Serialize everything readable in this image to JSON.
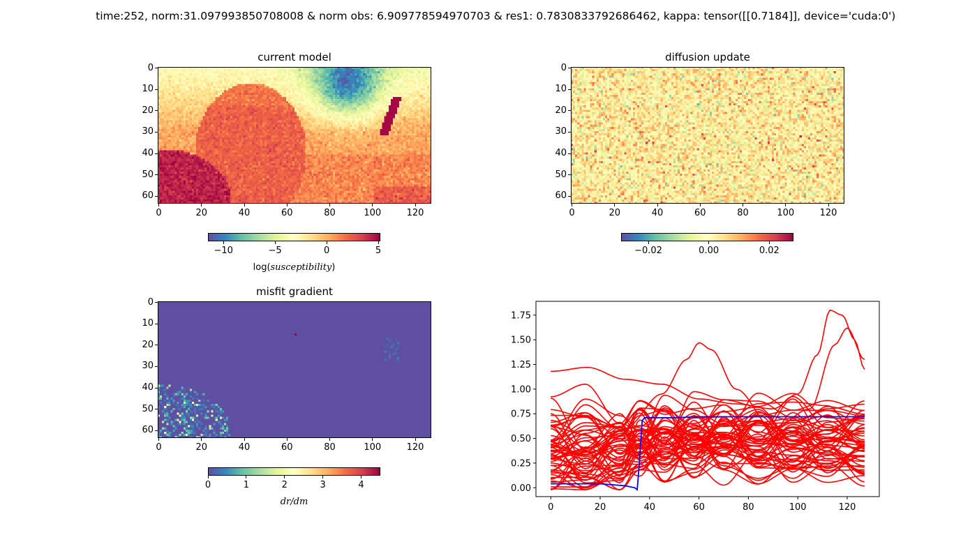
{
  "window_title": "  time:252, norm:31.097993850708008 & norm obs: 6.909778594970703 & res1: 0.7830833792686462, kappa: tensor([[0.7184]], device='cuda:0')",
  "colormap": "Spectral_r",
  "chart_data": [
    {
      "type": "heatmap",
      "title": "current model",
      "grid_shape": [
        64,
        128
      ],
      "x_ticks": [
        0,
        20,
        40,
        60,
        80,
        100,
        120
      ],
      "y_ticks": [
        0,
        10,
        20,
        30,
        40,
        50,
        60
      ],
      "colorbar": {
        "label_prefix": "log(",
        "label_italic": "susceptibility",
        "label_suffix": ")",
        "vmin": -11.5,
        "vmax": 5.2,
        "ticks": [
          -10,
          -5,
          0,
          5
        ],
        "tick_labels": [
          "−10",
          "−5",
          "0",
          "5"
        ]
      },
      "regions": [
        "upper band log(susceptibility) about -4 to -7 (green-blue), lowest about -10 near x 75-105, y 0-30",
        "central elliptical body x 15-67, y 7-64 about +2 (orange)",
        "lower-left body x 0-33, y 40-64 about +4.5 (dark red)",
        "thin high anomaly near x 107-112, y 15-30 about +5",
        "right-lower background about -1 to +1 (pale yellow)"
      ]
    },
    {
      "type": "heatmap",
      "title": "diffusion update",
      "grid_shape": [
        64,
        128
      ],
      "x_ticks": [
        0,
        20,
        40,
        60,
        80,
        100,
        120
      ],
      "y_ticks": [
        0,
        10,
        20,
        30,
        40,
        50,
        60
      ],
      "colorbar": {
        "label_prefix": "",
        "label_italic": "",
        "label_suffix": "",
        "vmin": -0.029,
        "vmax": 0.028,
        "ticks": [
          -0.02,
          0.0,
          0.02
        ],
        "tick_labels": [
          "−0.02",
          "0.00",
          "0.02"
        ]
      },
      "regions": [
        "spatially uncorrelated noise centered near 0.00"
      ]
    },
    {
      "type": "heatmap",
      "title": "misfit gradient",
      "grid_shape": [
        64,
        128
      ],
      "x_ticks": [
        0,
        20,
        40,
        60,
        80,
        100,
        120
      ],
      "y_ticks": [
        0,
        10,
        20,
        30,
        40,
        50,
        60
      ],
      "colorbar": {
        "label_prefix": "",
        "label_italic": "dr/dm",
        "label_suffix": "",
        "vmin": 0,
        "vmax": 4.5,
        "ticks": [
          0,
          1,
          2,
          3,
          4
        ],
        "tick_labels": [
          "0",
          "1",
          "2",
          "3",
          "4"
        ]
      },
      "regions": [
        "background dr/dm = 0",
        "speckle 0-2 in lower-left, x 0-33, y 40-64",
        "faint 0-0.5 near x 107-112, y 17-27",
        "single hot pixel about 4.5 at x 64, y 15"
      ]
    },
    {
      "type": "line",
      "title": "",
      "xlim": [
        -6,
        133
      ],
      "ylim": [
        -0.09,
        1.89
      ],
      "x_ticks": [
        0,
        20,
        40,
        60,
        80,
        100,
        120
      ],
      "y_ticks": [
        0.0,
        0.25,
        0.5,
        0.75,
        1.0,
        1.25,
        1.5,
        1.75
      ],
      "y_tick_labels": [
        "0.00",
        "0.25",
        "0.50",
        "0.75",
        "1.00",
        "1.25",
        "1.50",
        "1.75"
      ],
      "series": [
        {
          "color": "#0000ff",
          "x": [
            0,
            5,
            10,
            15,
            20,
            25,
            30,
            34,
            35,
            36,
            37,
            38,
            40,
            50,
            60,
            70,
            80,
            90,
            100,
            110,
            120,
            127
          ],
          "y": [
            0.04,
            0.04,
            0.04,
            0.04,
            0.04,
            0.03,
            0.02,
            0.0,
            -0.02,
            0.3,
            0.68,
            0.71,
            0.71,
            0.71,
            0.72,
            0.72,
            0.72,
            0.72,
            0.72,
            0.72,
            0.72,
            0.72
          ]
        }
      ],
      "red_bundle": {
        "color": "#ff0000",
        "count": 60,
        "x_range": [
          0,
          127
        ],
        "y_range": [
          -0.03,
          1.8
        ],
        "highlights": [
          {
            "x": [
              0,
              15,
              30,
              45,
              60,
              75,
              90,
              100,
              108,
              113,
              118,
              123,
              127
            ],
            "y": [
              1.18,
              1.22,
              1.1,
              1.05,
              0.9,
              0.85,
              0.8,
              0.95,
              1.35,
              1.8,
              1.75,
              1.5,
              1.2
            ]
          },
          {
            "x": [
              0,
              15,
              30,
              45,
              55,
              60,
              65,
              75,
              90,
              105,
              115,
              120,
              127
            ],
            "y": [
              0.3,
              0.4,
              0.6,
              0.95,
              1.3,
              1.47,
              1.4,
              1.0,
              0.6,
              0.8,
              1.45,
              1.62,
              1.3
            ]
          }
        ]
      }
    }
  ]
}
